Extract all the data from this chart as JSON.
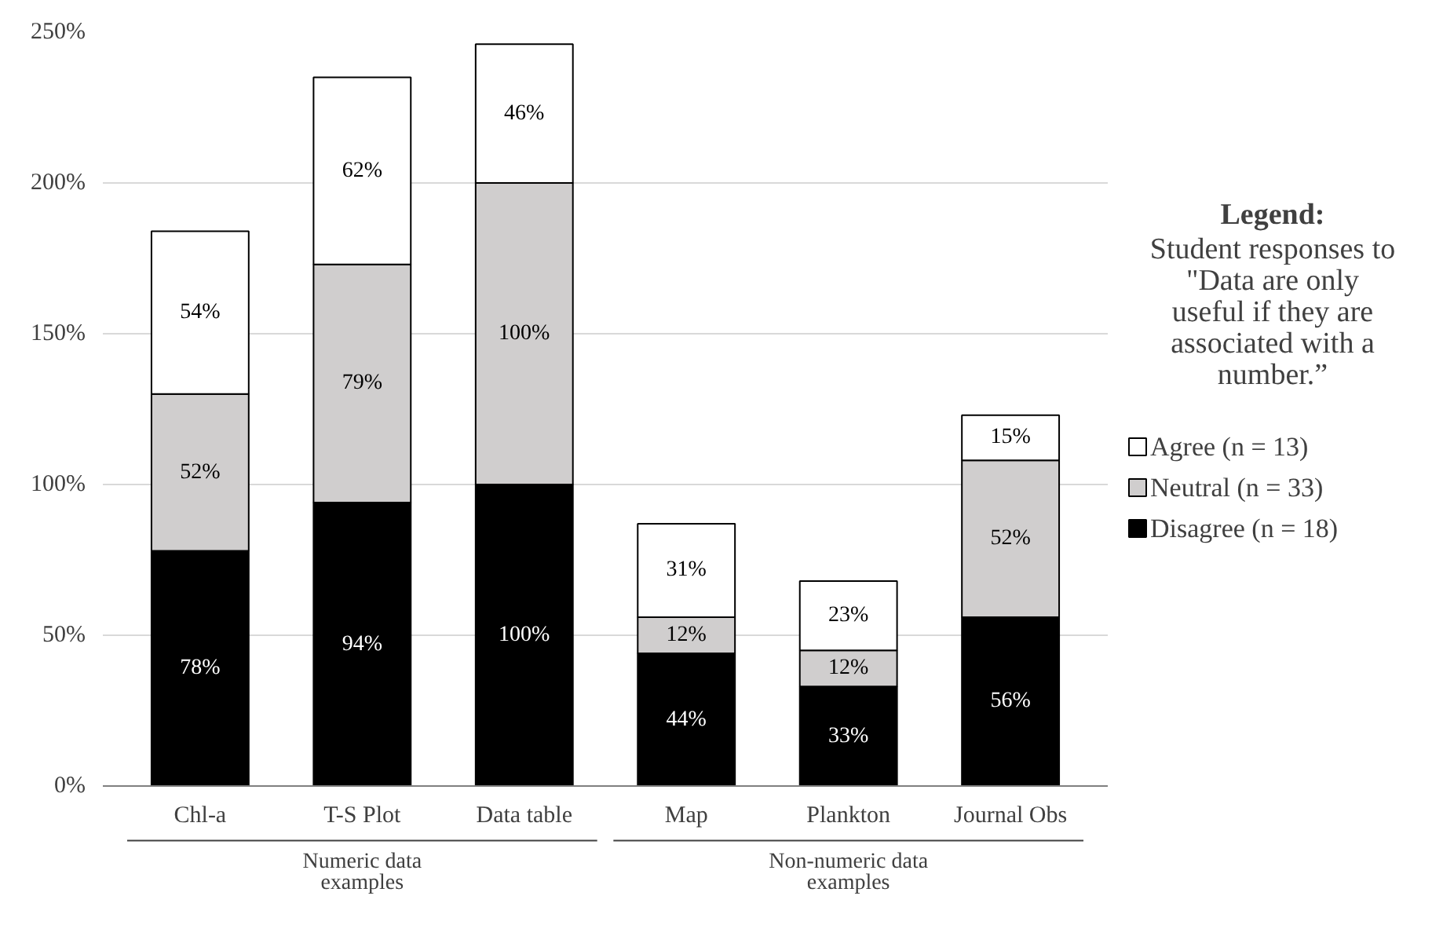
{
  "chart_data": {
    "type": "bar",
    "stacked": true,
    "categories": [
      "Chl-a",
      "T-S Plot",
      "Data table",
      "Map",
      "Plankton",
      "Journal Obs"
    ],
    "series": [
      {
        "name": "Disagree (n = 18)",
        "color": "#000000",
        "values": [
          78,
          94,
          100,
          44,
          33,
          56
        ],
        "value_labels": [
          "78%",
          "94%",
          "100%",
          "44%",
          "33%",
          "56%"
        ]
      },
      {
        "name": "Neutral (n = 33)",
        "color": "#d0cece",
        "values": [
          52,
          79,
          100,
          12,
          12,
          52
        ],
        "value_labels": [
          "52%",
          "79%",
          "100%",
          "12%",
          "12%",
          "52%"
        ]
      },
      {
        "name": "Agree (n = 13)",
        "color": "#ffffff",
        "values": [
          54,
          62,
          46,
          31,
          23,
          15
        ],
        "value_labels": [
          "54%",
          "62%",
          "46%",
          "31%",
          "23%",
          "15%"
        ]
      }
    ],
    "ylim": [
      0,
      250
    ],
    "yticks": [
      {
        "value": 0,
        "label": "0%"
      },
      {
        "value": 50,
        "label": "50%"
      },
      {
        "value": 100,
        "label": "100%"
      },
      {
        "value": 150,
        "label": "150%"
      },
      {
        "value": 200,
        "label": "200%"
      },
      {
        "value": 250,
        "label": "250%"
      }
    ],
    "grid": "y",
    "legend": "right",
    "legend_title": "Legend:",
    "annotations": [
      "Student responses to\n\"Data are only\nuseful if they are\nassociated with a\nnumber.”",
      "Numeric data\nexamples",
      "Non-numeric data\nexamples"
    ]
  }
}
